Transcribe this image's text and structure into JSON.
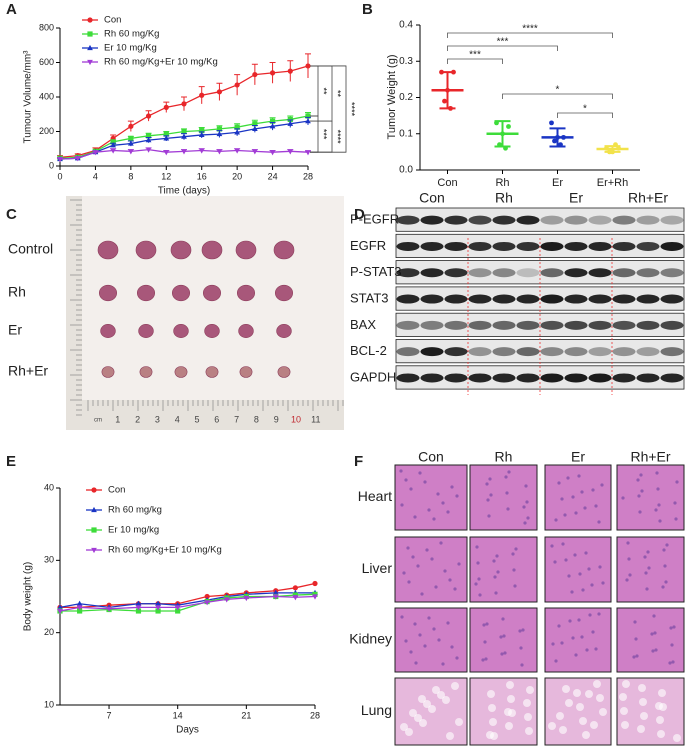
{
  "chart_data": [
    {
      "type": "line",
      "panel": "A",
      "x_label": "Time (days)",
      "y_label": "Tumour Volume/mm³",
      "x": [
        0,
        2,
        4,
        6,
        8,
        10,
        12,
        14,
        16,
        18,
        20,
        22,
        24,
        26,
        28
      ],
      "xlim": [
        0,
        28
      ],
      "xticks": [
        0,
        4,
        8,
        12,
        16,
        20,
        24,
        28
      ],
      "ylim": [
        0,
        800
      ],
      "yticks": [
        0,
        200,
        400,
        600,
        800
      ],
      "series": [
        {
          "name": "Con",
          "color": "#e8262a",
          "marker": "circle",
          "values": [
            50,
            60,
            90,
            160,
            230,
            290,
            340,
            360,
            410,
            430,
            470,
            530,
            540,
            550,
            580
          ],
          "errors": [
            10,
            10,
            15,
            20,
            30,
            30,
            30,
            40,
            50,
            50,
            60,
            60,
            60,
            60,
            70
          ]
        },
        {
          "name": "Rh 60 mg/Kg",
          "color": "#3ddc3a",
          "marker": "square",
          "values": [
            45,
            50,
            85,
            140,
            160,
            175,
            185,
            200,
            205,
            215,
            225,
            245,
            260,
            270,
            290
          ],
          "errors": [
            5,
            5,
            8,
            10,
            12,
            15,
            15,
            15,
            18,
            18,
            20,
            20,
            20,
            20,
            20
          ]
        },
        {
          "name": "Er 10 mg/Kg",
          "color": "#1a35c4",
          "marker": "triangle",
          "values": [
            40,
            45,
            80,
            120,
            130,
            150,
            160,
            170,
            180,
            185,
            195,
            215,
            230,
            245,
            260
          ],
          "errors": [
            5,
            5,
            8,
            12,
            15,
            15,
            15,
            18,
            18,
            20,
            20,
            20,
            22,
            22,
            22
          ]
        },
        {
          "name": "Rh 60 mg/Kg+Er 10 mg/Kg",
          "color": "#a23cd6",
          "marker": "triangle-down",
          "values": [
            40,
            45,
            80,
            90,
            85,
            95,
            80,
            85,
            90,
            85,
            90,
            85,
            80,
            85,
            80
          ],
          "errors": [
            5,
            5,
            8,
            10,
            10,
            10,
            10,
            10,
            10,
            10,
            10,
            10,
            10,
            10,
            8
          ]
        }
      ],
      "annotations": [
        "**",
        "**",
        "****",
        "***",
        "****"
      ]
    },
    {
      "type": "dot",
      "panel": "B",
      "y_label": "Tumor Weight (g)",
      "categories": [
        "Con",
        "Rh",
        "Er",
        "Er+Rh"
      ],
      "colors": [
        "#e8262a",
        "#3ddc3a",
        "#1a35c4",
        "#f2e24a"
      ],
      "values": [
        [
          0.27,
          0.27,
          0.19,
          0.17,
          0.22
        ],
        [
          0.13,
          0.12,
          0.07,
          0.06,
          0.1
        ],
        [
          0.13,
          0.09,
          0.08,
          0.07,
          0.09
        ],
        [
          0.06,
          0.06,
          0.05,
          0.07,
          0.05
        ]
      ],
      "means": [
        0.22,
        0.1,
        0.09,
        0.058
      ],
      "sds": [
        0.05,
        0.035,
        0.025,
        0.008
      ],
      "ylim": [
        0,
        0.4
      ],
      "yticks": [
        {
          "value": 0,
          "label": "0.0"
        },
        0.1,
        0.2,
        0.3,
        0.4
      ],
      "annotations": [
        "****",
        "***",
        "***",
        "*",
        "*"
      ]
    },
    {
      "type": "line",
      "panel": "E",
      "x_label": "Days",
      "y_label": "Body weight (g)",
      "x": [
        2,
        4,
        7,
        10,
        12,
        14,
        17,
        19,
        21,
        24,
        26,
        28
      ],
      "xlim": [
        2,
        28
      ],
      "xticks": [
        7,
        14,
        21,
        28
      ],
      "ylim": [
        10,
        40
      ],
      "yticks": [
        10,
        20,
        30,
        40
      ],
      "series": [
        {
          "name": "Con",
          "color": "#e8262a",
          "marker": "circle",
          "values": [
            23.5,
            23.5,
            23.8,
            24,
            24,
            24,
            25,
            25.2,
            25.5,
            25.8,
            26.2,
            26.8
          ]
        },
        {
          "name": "Rh 60 mg/kg",
          "color": "#1a35c4",
          "marker": "triangle",
          "values": [
            23.5,
            24,
            23.5,
            24,
            24,
            23.8,
            24.5,
            25,
            25.3,
            25.5,
            25.5,
            25.5
          ]
        },
        {
          "name": "Er 10 mg/kg",
          "color": "#3ddc3a",
          "marker": "square",
          "values": [
            23,
            23,
            23.2,
            23,
            23,
            23,
            24.3,
            24.8,
            25,
            25,
            25.2,
            25.3
          ]
        },
        {
          "name": "Rh 60 mg/Kg+Er 10 mg/Kg",
          "color": "#a23cd6",
          "marker": "triangle-down",
          "values": [
            23,
            23.5,
            23.3,
            23.5,
            23.5,
            23.5,
            24.2,
            24.6,
            24.8,
            25,
            24.9,
            25
          ]
        }
      ]
    }
  ],
  "photo": {
    "panel": "C",
    "row_labels": [
      "Control",
      "Rh",
      "Er",
      "Rh+Er"
    ],
    "ruler_labels": [
      "cm",
      "1",
      "2",
      "3",
      "4",
      "5",
      "6",
      "7",
      "8",
      "9",
      "10",
      "11"
    ]
  },
  "western_blot": {
    "panel": "D",
    "groups": [
      "Con",
      "Rh",
      "Er",
      "Rh+Er"
    ],
    "rows": [
      "P-EGFR",
      "EGFR",
      "P-STAT3",
      "STAT3",
      "BAX",
      "BCL-2",
      "GAPDH"
    ]
  },
  "histology": {
    "panel": "F",
    "groups": [
      "Con",
      "Rh",
      "Er",
      "Rh+Er"
    ],
    "rows": [
      "Heart",
      "Liver",
      "Kidney",
      "Lung"
    ]
  }
}
